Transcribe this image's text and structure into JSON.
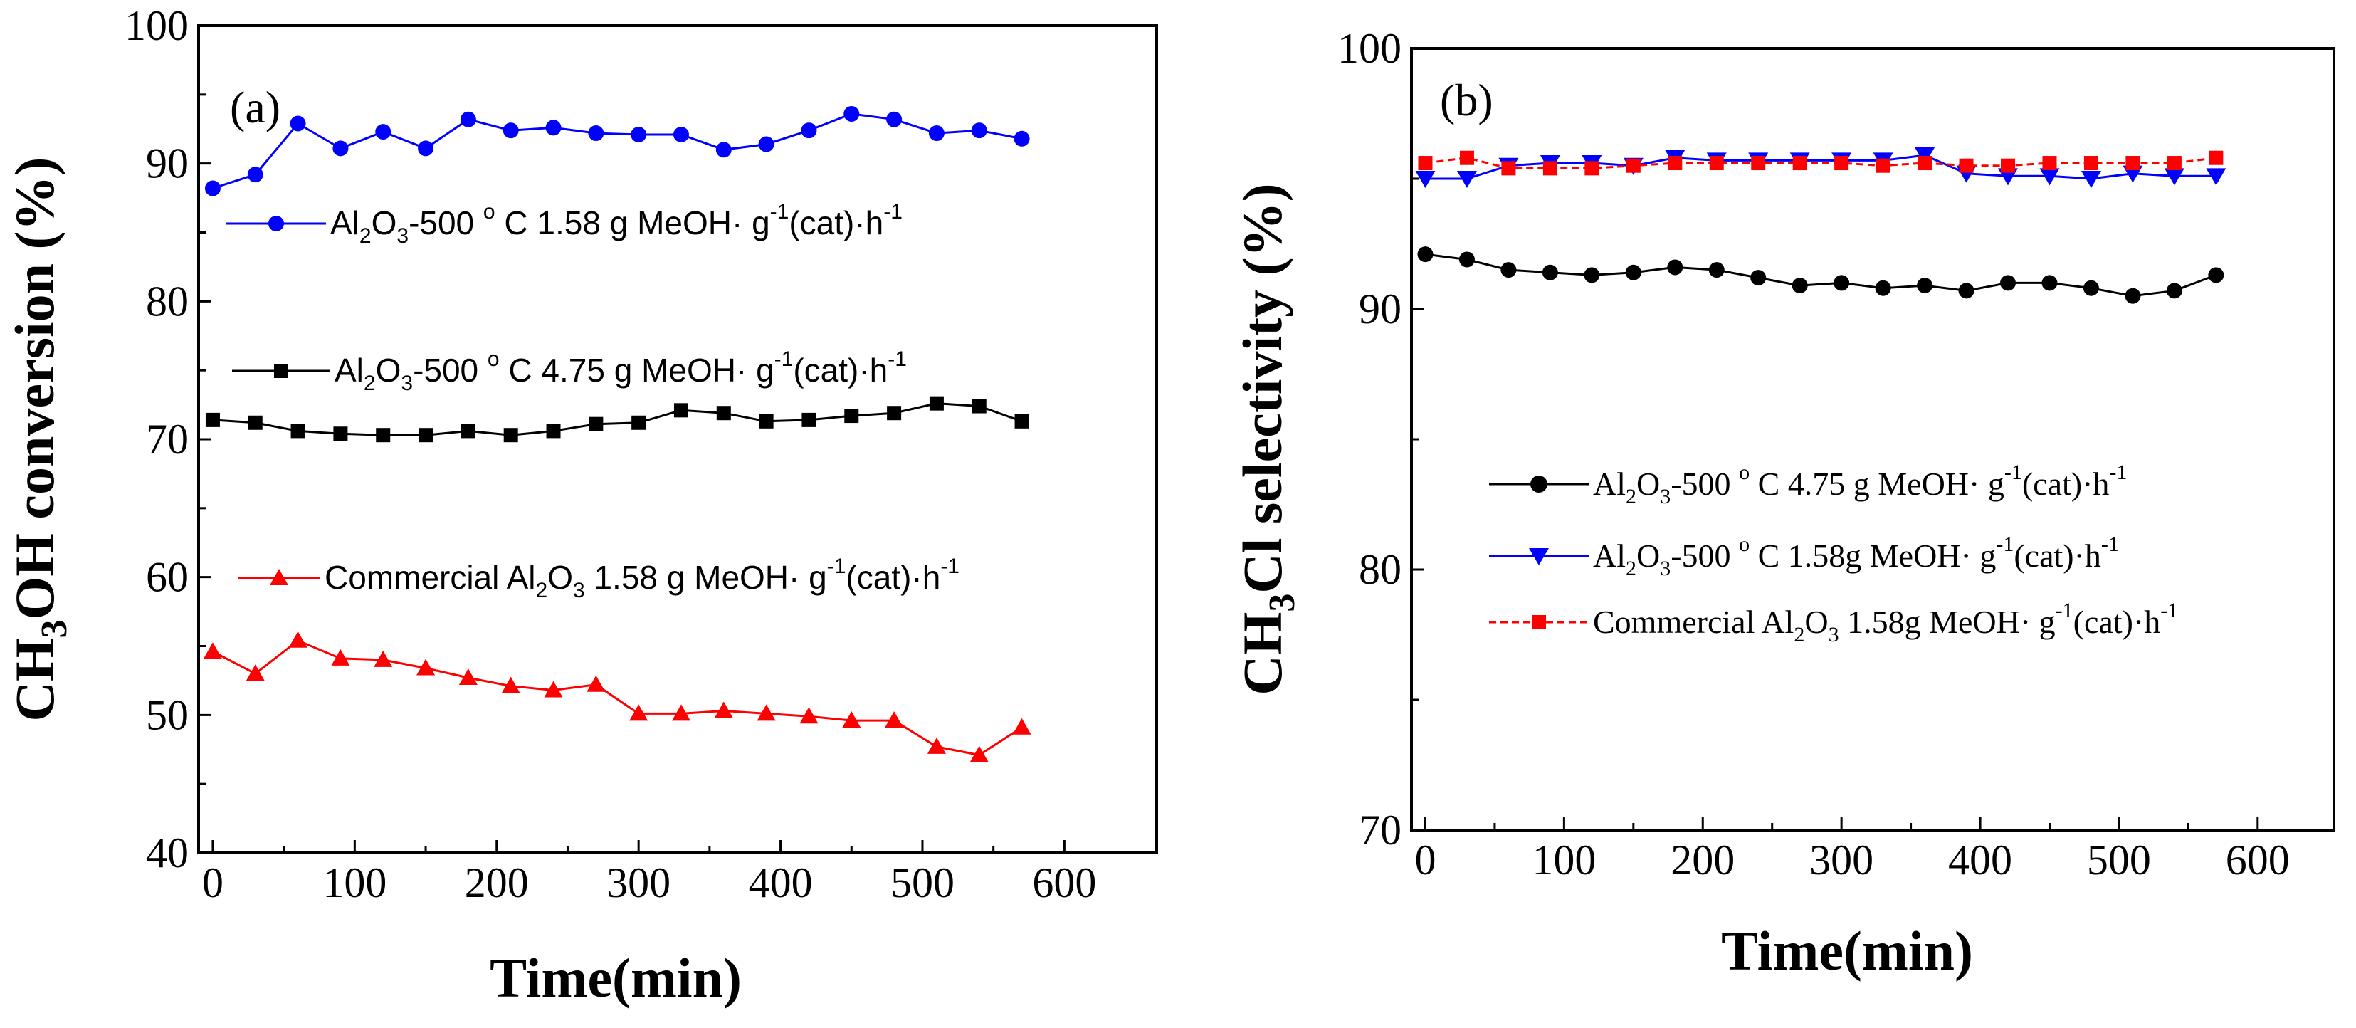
{
  "chart_data": [
    {
      "type": "line",
      "panel_label": "(a)",
      "xlabel": "Time(min)",
      "ylabel": "CH3OH conversion (%)",
      "ylabel_parts": {
        "pre": "CH",
        "sub": "3",
        "post": "OH conversion (%)"
      },
      "xlim": [
        -10,
        665
      ],
      "ylim": [
        40,
        100
      ],
      "x_ticks": [
        0,
        100,
        200,
        300,
        400,
        500,
        600
      ],
      "y_ticks": [
        40,
        50,
        60,
        70,
        80,
        90,
        100
      ],
      "x_tick_labels": [
        "0",
        "100",
        "200",
        "300",
        "400",
        "500",
        "600"
      ],
      "y_tick_labels": [
        "40",
        "50",
        "60",
        "70",
        "80",
        "90",
        "100"
      ],
      "x": [
        0,
        30,
        60,
        90,
        120,
        150,
        180,
        210,
        240,
        270,
        300,
        330,
        360,
        390,
        420,
        450,
        480,
        510,
        540,
        570
      ],
      "series": [
        {
          "name": "Al2O3-500 ° C 1.58 g MeOH· g-1(cat)·h-1",
          "legend_parts": {
            "pre": "Al",
            "s1": "2",
            "mid": "O",
            "s2": "3",
            "post": "-500 ",
            "deg": "o",
            "post2": " C 1.58 g MeOH· g",
            "sup1": "-1",
            "post3": "(cat)·h",
            "sup2": "-1"
          },
          "color": "#0000ff",
          "marker": "circle",
          "values": [
            88.2,
            89.2,
            92.9,
            91.1,
            92.3,
            91.1,
            93.2,
            92.4,
            92.6,
            92.2,
            92.1,
            92.1,
            91.0,
            91.4,
            92.4,
            93.6,
            93.2,
            92.2,
            92.4,
            91.8
          ]
        },
        {
          "name": "Al2O3-500 ° C 4.75 g MeOH· g-1(cat)·h-1",
          "legend_parts": {
            "pre": "Al",
            "s1": "2",
            "mid": "O",
            "s2": "3",
            "post": "-500 ",
            "deg": "o",
            "post2": " C 4.75 g MeOH· g",
            "sup1": "-1",
            "post3": "(cat)·h",
            "sup2": "-1"
          },
          "color": "#000000",
          "marker": "square",
          "values": [
            71.4,
            71.2,
            70.6,
            70.4,
            70.3,
            70.3,
            70.6,
            70.3,
            70.6,
            71.1,
            71.2,
            72.1,
            71.9,
            71.3,
            71.4,
            71.7,
            71.9,
            72.6,
            72.4,
            71.3
          ]
        },
        {
          "name": "Commercial Al2O3 1.58 g MeOH· g-1(cat)·h-1",
          "legend_parts": {
            "pre": "Commercial Al",
            "s1": "2",
            "mid": "O",
            "s2": "3",
            "post": " 1.58 g MeOH· g",
            "sup1": "-1",
            "post3": "(cat)·h",
            "sup2": "-1"
          },
          "color": "#ff0000",
          "marker": "triangle-up",
          "values": [
            54.6,
            53.0,
            55.4,
            54.1,
            54.0,
            53.4,
            52.7,
            52.1,
            51.8,
            52.2,
            50.1,
            50.1,
            50.3,
            50.1,
            49.9,
            49.6,
            49.6,
            47.7,
            47.1,
            49.1
          ]
        }
      ]
    },
    {
      "type": "line",
      "panel_label": "(b)",
      "xlabel": "Time(min)",
      "ylabel": "CH3Cl selectivity (%)",
      "ylabel_parts": {
        "pre": "CH",
        "sub": "3",
        "post": "Cl selectivity (%)"
      },
      "xlim": [
        -10,
        655
      ],
      "ylim": [
        70,
        100
      ],
      "x_ticks": [
        0,
        100,
        200,
        300,
        400,
        500,
        600
      ],
      "y_ticks": [
        70,
        80,
        90,
        100
      ],
      "x_tick_labels": [
        "0",
        "100",
        "200",
        "300",
        "400",
        "500",
        "600"
      ],
      "y_tick_labels": [
        "70",
        "80",
        "90",
        "100"
      ],
      "x": [
        0,
        30,
        60,
        90,
        120,
        150,
        180,
        210,
        240,
        270,
        300,
        330,
        360,
        390,
        420,
        450,
        480,
        510,
        540,
        570
      ],
      "series": [
        {
          "name": "Al2O3-500 ° C 4.75 g MeOH· g-1(cat)·h-1",
          "legend_parts": {
            "pre": "Al",
            "s1": "2",
            "mid": "O",
            "s2": "3",
            "post": "-500 ",
            "deg": "o",
            "post2": " C 4.75 g MeOH· g",
            "sup1": "-1",
            "post3": "(cat)·h",
            "sup2": "-1"
          },
          "color": "#000000",
          "marker": "circle",
          "values": [
            92.1,
            91.9,
            91.5,
            91.4,
            91.3,
            91.4,
            91.6,
            91.5,
            91.2,
            90.9,
            91.0,
            90.8,
            90.9,
            90.7,
            91.0,
            91.0,
            90.8,
            90.5,
            90.7,
            91.3
          ]
        },
        {
          "name": "Al2O3-500 ° C 1.58g MeOH· g-1(cat)·h-1",
          "legend_parts": {
            "pre": "Al",
            "s1": "2",
            "mid": "O",
            "s2": "3",
            "post": "-500 ",
            "deg": "o",
            "post2": " C 1.58g MeOH· g",
            "sup1": "-1",
            "post3": "(cat)·h",
            "sup2": "-1"
          },
          "color": "#0000ff",
          "marker": "triangle-down",
          "values": [
            95.0,
            95.0,
            95.5,
            95.6,
            95.6,
            95.5,
            95.8,
            95.7,
            95.7,
            95.7,
            95.7,
            95.7,
            95.9,
            95.2,
            95.1,
            95.1,
            95.0,
            95.2,
            95.1,
            95.1
          ]
        },
        {
          "name": "Commercial Al2O3 1.58g MeOH· g-1(cat)·h-1",
          "legend_parts": {
            "pre": "Commercial Al",
            "s1": "2",
            "mid": "O",
            "s2": "3",
            "post": " 1.58g MeOH· g",
            "sup1": "-1",
            "post3": "(cat)·h",
            "sup2": "-1"
          },
          "color": "#ff0000",
          "marker": "square",
          "values": [
            95.6,
            95.8,
            95.4,
            95.4,
            95.4,
            95.5,
            95.6,
            95.6,
            95.6,
            95.6,
            95.6,
            95.5,
            95.6,
            95.5,
            95.5,
            95.6,
            95.6,
            95.6,
            95.6,
            95.8
          ]
        }
      ]
    }
  ]
}
